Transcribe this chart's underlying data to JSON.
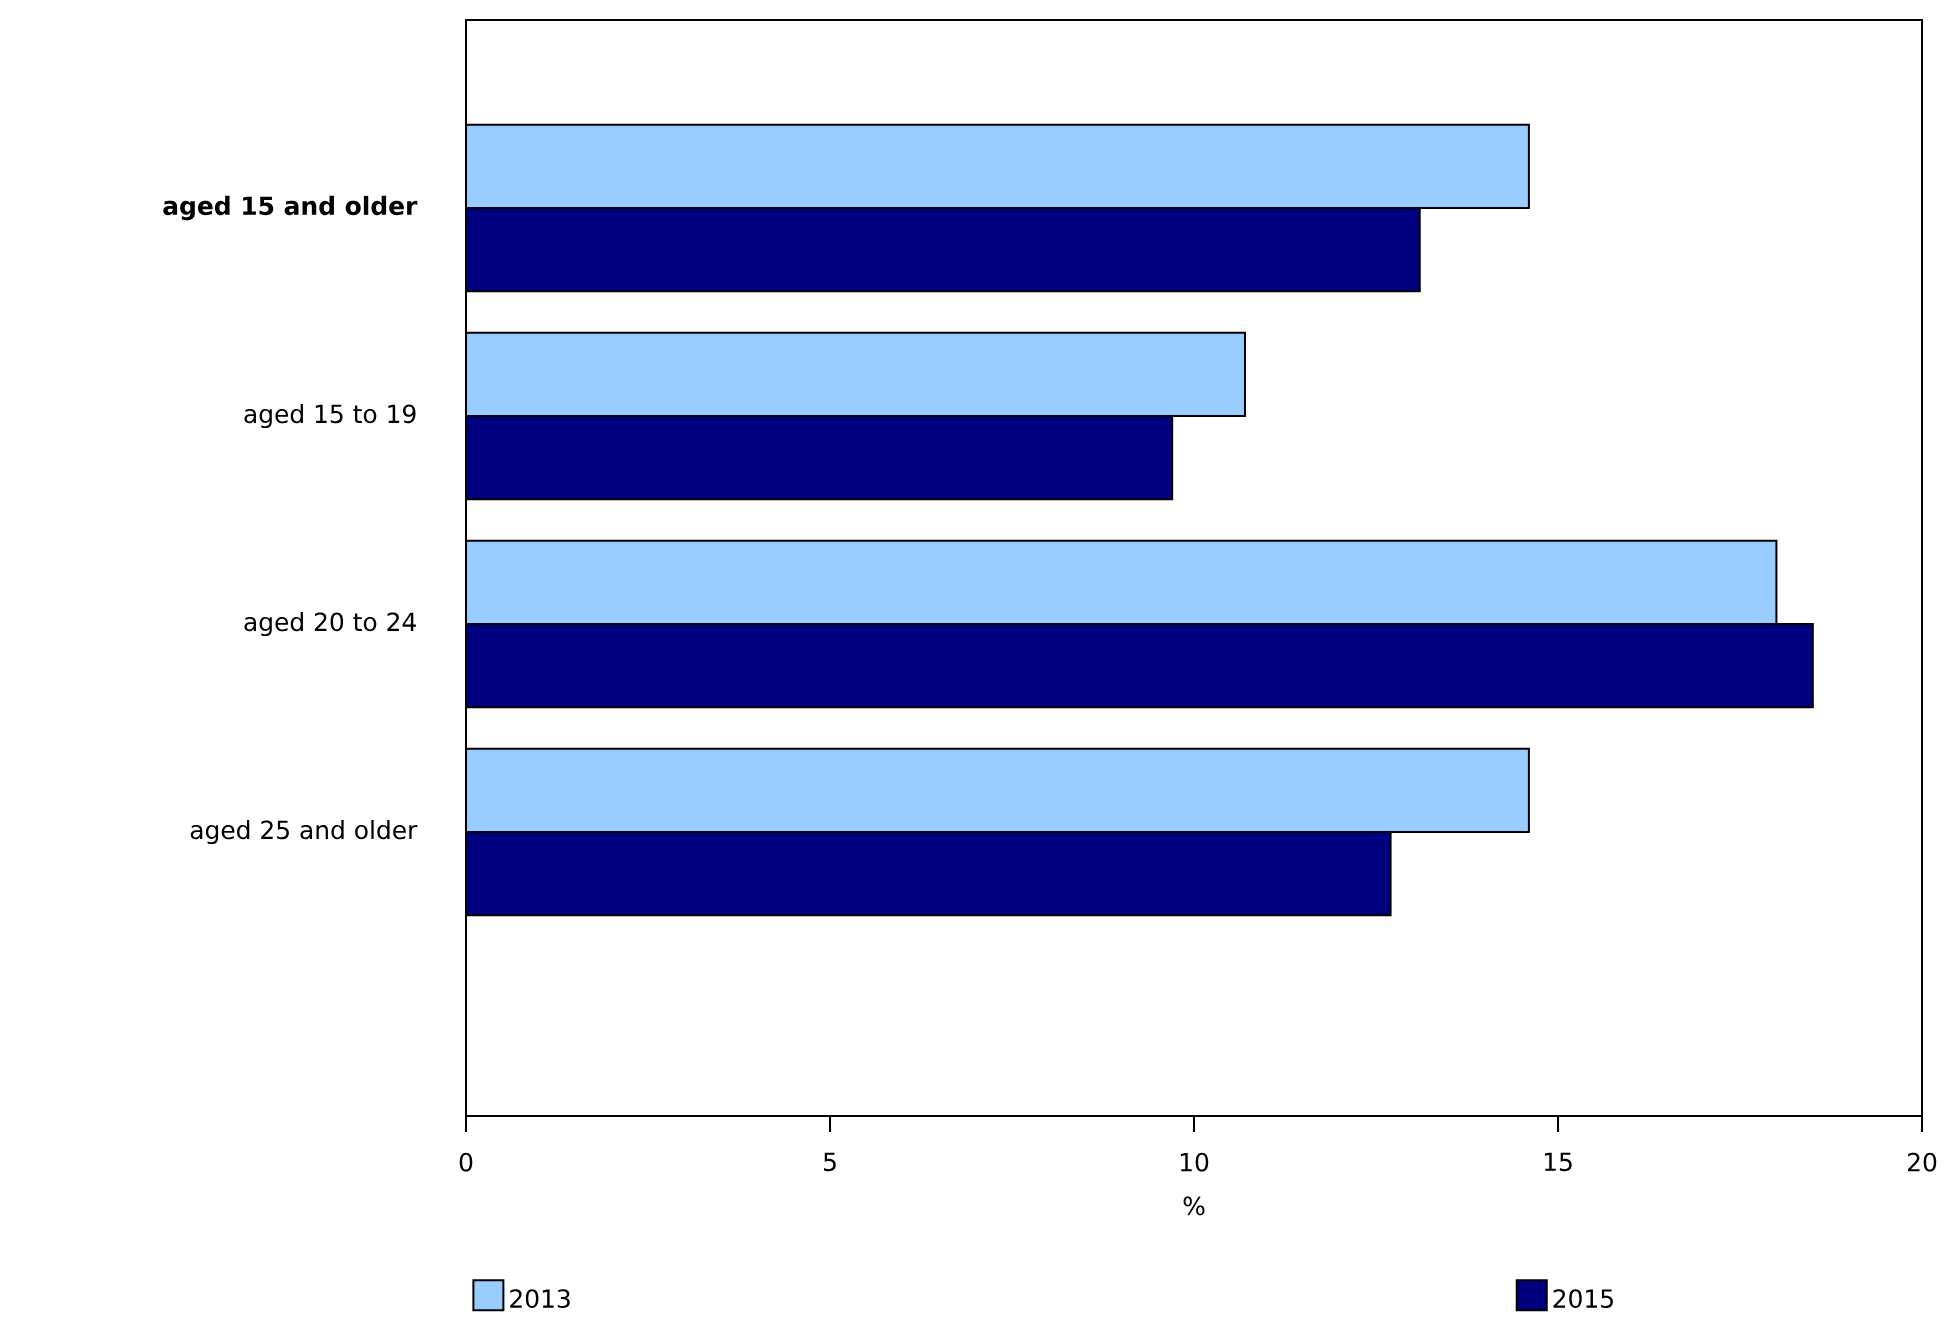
{
  "chart_data": {
    "type": "bar",
    "orientation": "horizontal",
    "xlabel": "%",
    "categories": [
      "aged 15 and older",
      "aged 15 to 19",
      "aged 20 to 24",
      "aged 25 and older"
    ],
    "series": [
      {
        "name": "2013",
        "color": "#99ccff",
        "values": [
          14.6,
          10.7,
          18.0,
          14.6
        ]
      },
      {
        "name": "2015",
        "color": "#000080",
        "values": [
          13.1,
          9.7,
          18.5,
          12.7
        ]
      }
    ],
    "xlim": [
      0,
      20
    ],
    "xticks": [
      0,
      5,
      10,
      15,
      20
    ],
    "grid": false,
    "legend": "bottom"
  }
}
